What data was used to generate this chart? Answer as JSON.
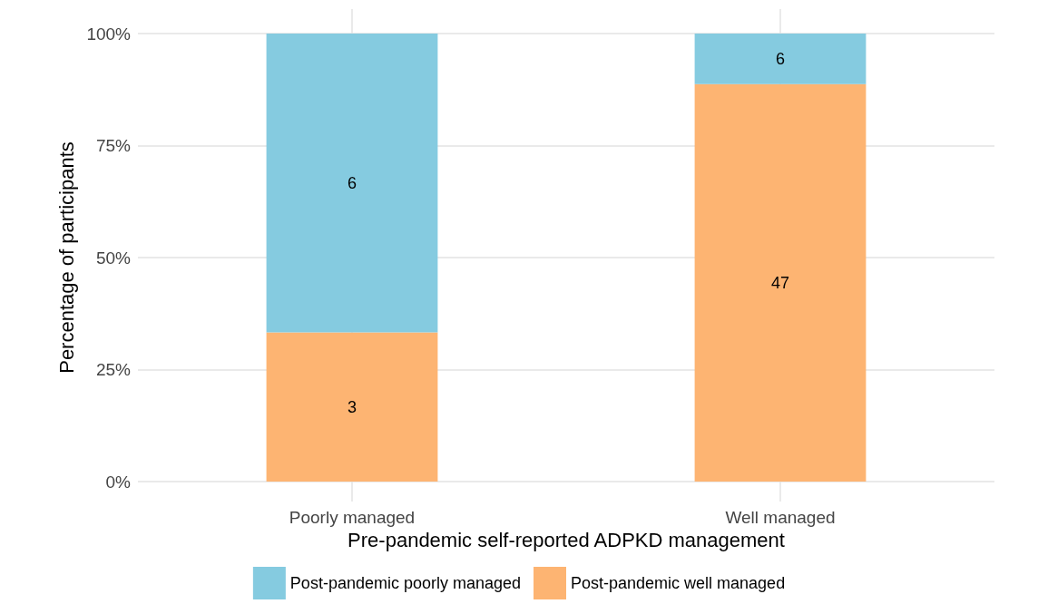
{
  "chart_data": {
    "type": "bar",
    "stacked": true,
    "xlabel": "Pre-pandemic self-reported ADPKD management",
    "ylabel": "Percentage of participants",
    "categories": [
      "Poorly managed",
      "Well managed"
    ],
    "series": [
      {
        "name": "Post-pandemic well managed",
        "color": "#fdb472",
        "values": [
          33.3,
          88.7
        ]
      },
      {
        "name": "Post-pandemic poorly managed",
        "color": "#85cbe0",
        "values": [
          66.7,
          11.3
        ]
      }
    ],
    "annotations": [
      "3",
      "6",
      "47",
      "6"
    ],
    "ylim": [
      0,
      100
    ],
    "yticks": [
      {
        "value": 0,
        "label": "0%"
      },
      {
        "value": 25,
        "label": "25%"
      },
      {
        "value": 50,
        "label": "50%"
      },
      {
        "value": 75,
        "label": "75%"
      },
      {
        "value": 100,
        "label": "100%"
      }
    ],
    "grid": true,
    "legend": "bottom"
  }
}
